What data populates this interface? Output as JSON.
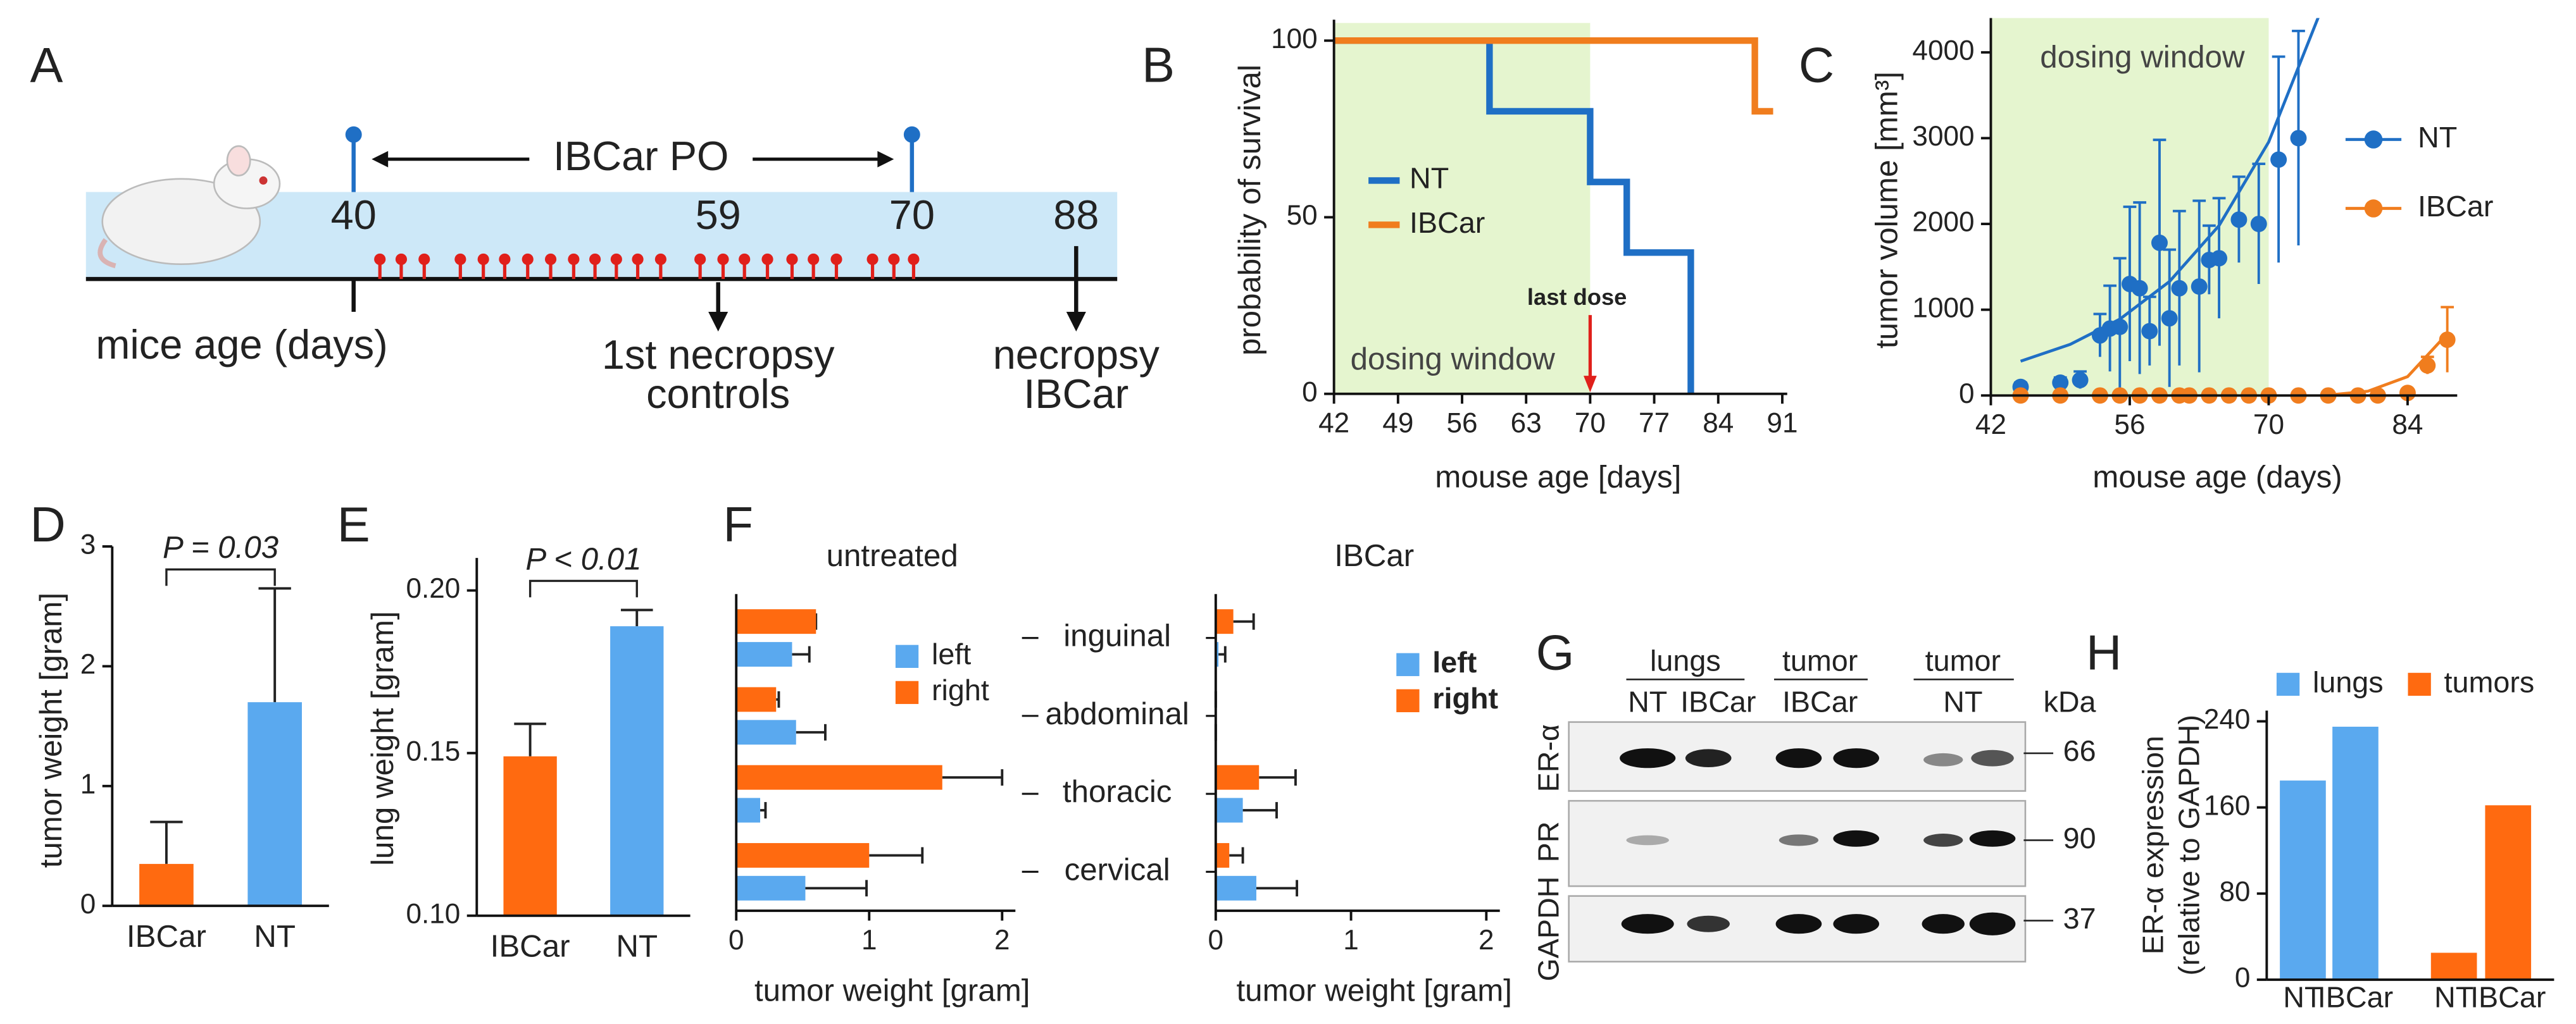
{
  "timeline": {
    "label": "A",
    "span_label": "IBCar PO",
    "ages": [
      40,
      59,
      70,
      88
    ],
    "axis_label": "mice age (days)",
    "events": [
      [
        "1st necropsy",
        "controls"
      ],
      [
        "necropsy",
        "IBCar"
      ]
    ]
  },
  "blot": {
    "label": "G",
    "groups": [
      "lungs",
      "tumor",
      "tumor"
    ],
    "lanes": [
      "NT",
      "IBCar",
      "IBCar",
      "NT"
    ],
    "unit": "kDa",
    "rows": [
      {
        "name": "ER-α",
        "kda": 66
      },
      {
        "name": "PR",
        "kda": 90
      },
      {
        "name": "GAPDH",
        "kda": 37
      }
    ]
  },
  "chart_data": [
    {
      "label": "B",
      "type": "line",
      "xlabel": "mouse age [days]",
      "ylabel": "probability of survival",
      "xlim": [
        42,
        91
      ],
      "xticks": [
        42,
        49,
        56,
        63,
        70,
        77,
        84,
        91
      ],
      "ylim": [
        0,
        105
      ],
      "yticks": [
        0,
        50,
        100
      ],
      "shade": [
        42,
        70
      ],
      "shade_label": "dosing window",
      "annotation": {
        "text": "last dose",
        "x": 70
      },
      "series": [
        {
          "name": "NT",
          "color": "#1f6fc5",
          "x": [
            42,
            59,
            59,
            70,
            70,
            74,
            74,
            81,
            81
          ],
          "values": [
            100,
            100,
            80,
            80,
            60,
            60,
            40,
            40,
            0
          ]
        },
        {
          "name": "IBCar",
          "color": "#f07d1e",
          "x": [
            42,
            88,
            88,
            90
          ],
          "values": [
            100,
            100,
            80,
            80
          ]
        }
      ]
    },
    {
      "label": "C",
      "type": "scatter",
      "xlabel": "mouse age (days)",
      "ylabel": "tumor volume [mm³]",
      "xlim": [
        42,
        89
      ],
      "xticks": [
        42,
        56,
        70,
        84
      ],
      "ylim": [
        0,
        4400
      ],
      "yticks": [
        0,
        1000,
        2000,
        3000,
        4000
      ],
      "shade": [
        42,
        70
      ],
      "shade_label": "dosing window",
      "series": [
        {
          "name": "NT",
          "color": "#1f6fc5",
          "x": [
            45,
            49,
            51,
            53,
            54,
            55,
            56,
            57,
            58,
            59,
            60,
            61,
            63,
            64,
            65,
            67,
            69,
            71,
            73
          ],
          "values": [
            100,
            150,
            180,
            700,
            780,
            800,
            1300,
            1250,
            750,
            1780,
            900,
            1250,
            1270,
            1580,
            1600,
            2050,
            2000,
            2750,
            3000
          ],
          "errors": [
            50,
            60,
            100,
            250,
            500,
            800,
            900,
            1000,
            400,
            1200,
            800,
            900,
            1000,
            400,
            700,
            500,
            700,
            1200,
            1250
          ],
          "fit_x": [
            45,
            50,
            55,
            60,
            65,
            70,
            75
          ],
          "fit_values": [
            400,
            596,
            890,
            1328,
            1981,
            2955,
            4409
          ]
        },
        {
          "name": "IBCar",
          "color": "#f07d1e",
          "x": [
            45,
            49,
            53,
            55,
            57,
            59,
            61,
            62,
            64,
            66,
            68,
            70,
            73,
            76,
            79,
            81,
            84,
            86,
            88
          ],
          "values": [
            0,
            0,
            0,
            0,
            0,
            0,
            0,
            0,
            0,
            0,
            0,
            0,
            0,
            0,
            0,
            0,
            30,
            350,
            650
          ],
          "errors": [
            0,
            0,
            0,
            0,
            0,
            0,
            0,
            0,
            0,
            0,
            0,
            0,
            0,
            0,
            0,
            0,
            20,
            100,
            380
          ],
          "fit_x": [
            76,
            80,
            84,
            88
          ],
          "fit_values": [
            5,
            50,
            220,
            720
          ]
        }
      ]
    },
    {
      "label": "D",
      "type": "bar",
      "ylabel": "tumor weight [gram]",
      "categories": [
        "IBCar",
        "NT"
      ],
      "values": [
        0.35,
        1.7
      ],
      "errors": [
        0.35,
        0.95
      ],
      "colors": [
        "#ff6a10",
        "#5aa9ef"
      ],
      "ylim": [
        0,
        3
      ],
      "yticks": [
        0,
        1,
        2,
        3
      ],
      "annotation": "P = 0.03"
    },
    {
      "label": "E",
      "type": "bar",
      "ylabel": "lung weight [gram]",
      "categories": [
        "IBCar",
        "NT"
      ],
      "values": [
        0.149,
        0.189
      ],
      "errors": [
        0.01,
        0.005
      ],
      "colors": [
        "#ff6a10",
        "#5aa9ef"
      ],
      "ylim": [
        0.1,
        0.21
      ],
      "yticks": [
        {
          "value": 0.1,
          "label": "0.10"
        },
        0.15,
        {
          "value": 0.2,
          "label": "0.20"
        }
      ],
      "annotation": "P < 0.01"
    },
    {
      "label": "F",
      "type": "hbar",
      "categories": [
        "inguinal",
        "abdominal",
        "thoracic",
        "cervical"
      ],
      "xlabel": "tumor weight [gram]",
      "xlim": [
        0,
        2.1
      ],
      "xticks": [
        0,
        1,
        2
      ],
      "groups": [
        {
          "title": "untreated",
          "series": [
            {
              "name": "left",
              "color": "#5aa9ef",
              "values": [
                0.42,
                0.45,
                0.18,
                0.52
              ],
              "errors": [
                0.13,
                0.22,
                0.04,
                0.46
              ]
            },
            {
              "name": "right",
              "color": "#ff6a10",
              "values": [
                0.6,
                0.3,
                1.55,
                1.0
              ],
              "errors": [
                0,
                0.02,
                0.45,
                0.4
              ]
            }
          ]
        },
        {
          "title": "IBCar",
          "series": [
            {
              "name": "left",
              "color": "#5aa9ef",
              "values": [
                0.02,
                0,
                0.2,
                0.3
              ],
              "errors": [
                0.05,
                0,
                0.25,
                0.3
              ]
            },
            {
              "name": "right",
              "color": "#ff6a10",
              "values": [
                0.13,
                0,
                0.32,
                0.1
              ],
              "errors": [
                0.15,
                0,
                0.27,
                0.1
              ]
            }
          ]
        }
      ]
    },
    {
      "label": "H",
      "type": "grouped_bar",
      "ylabel": [
        "ER-α expression",
        "(relative to GAPDH)"
      ],
      "categories": [
        "NT",
        "IBCar",
        "NT",
        "IBCar"
      ],
      "ylim": [
        0,
        250
      ],
      "yticks": [
        0,
        80,
        160,
        240
      ],
      "series": [
        {
          "name": "lungs",
          "color": "#5aa9ef",
          "values": [
            185,
            235,
            null,
            null
          ]
        },
        {
          "name": "tumors",
          "color": "#ff6a10",
          "values": [
            null,
            null,
            25,
            162
          ]
        }
      ]
    }
  ]
}
